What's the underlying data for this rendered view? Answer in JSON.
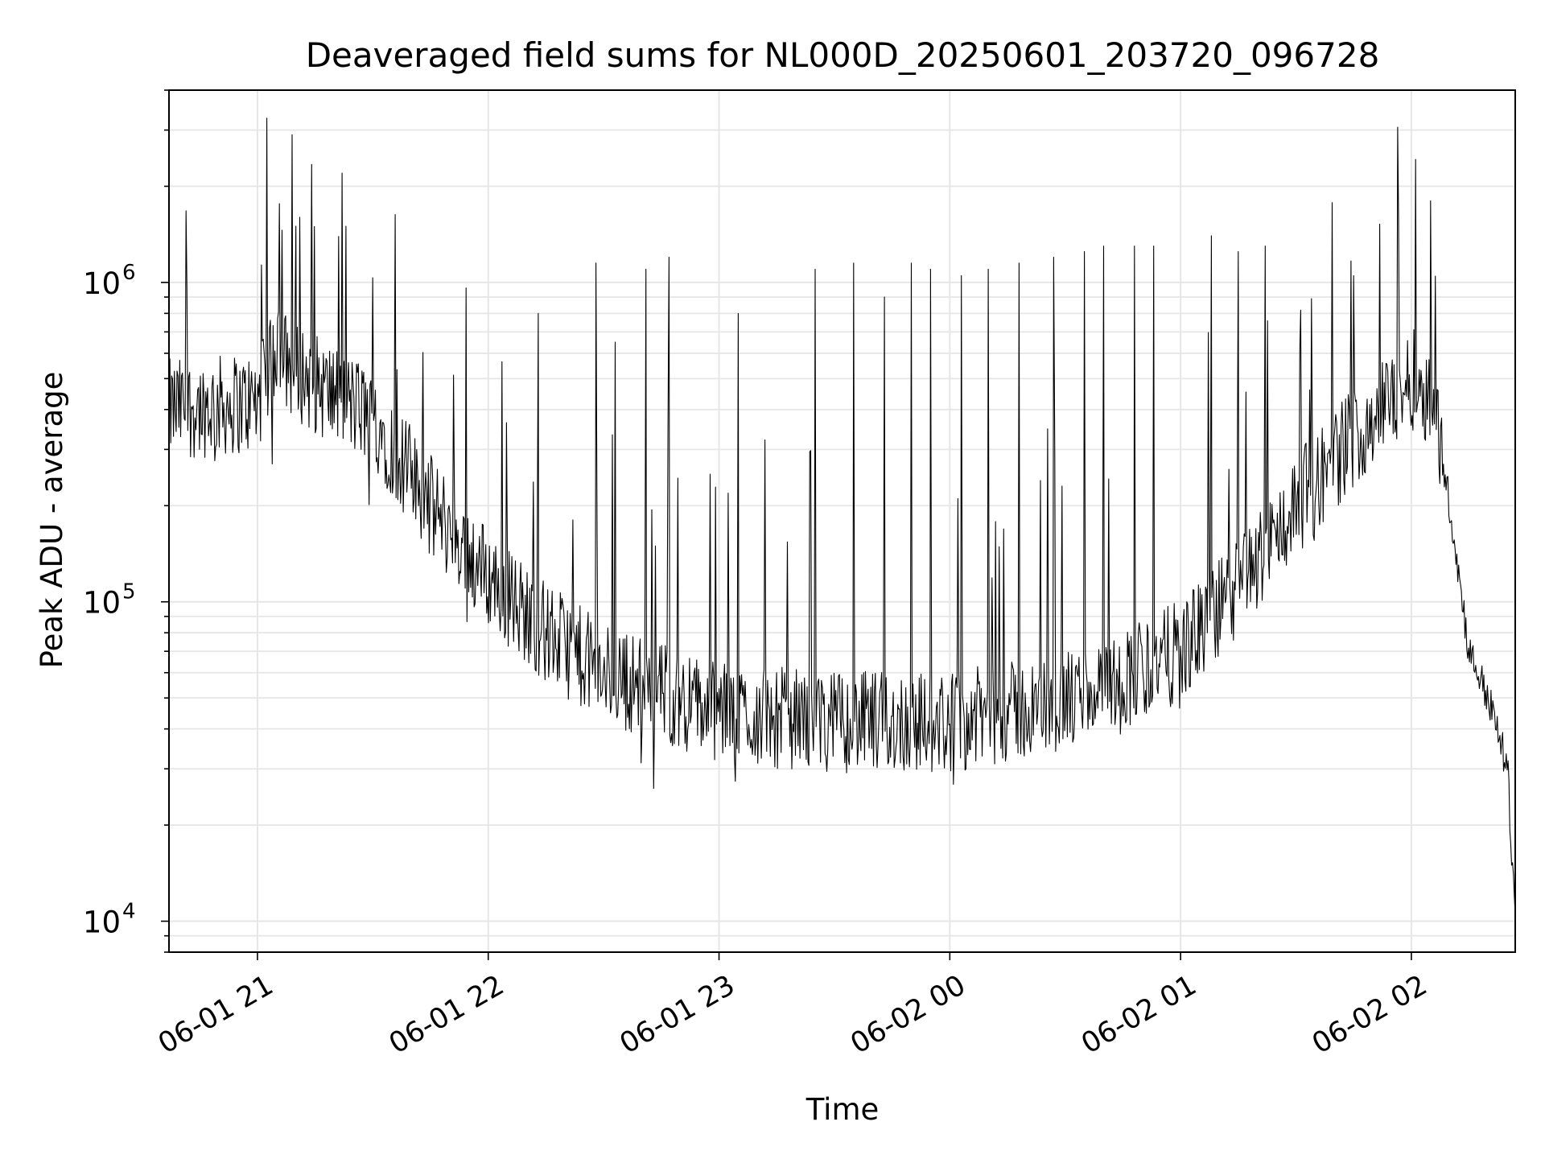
{
  "chart_data": {
    "type": "line",
    "title": "Deaveraged field sums for NL000D_20250601_203720_096728",
    "xlabel": "Time",
    "ylabel": "Peak ADU - average",
    "yscale": "log",
    "ylim": [
      8000,
      4000000
    ],
    "xlim": [
      "2025-06-01 20:37",
      "2025-06-02 02:27"
    ],
    "grid": true,
    "line_color": "#000000",
    "grid_color": "#e6e6e6",
    "x_ticks": [
      {
        "t": "2025-06-01 21:00",
        "label": "06-01 21"
      },
      {
        "t": "2025-06-01 22:00",
        "label": "06-01 22"
      },
      {
        "t": "2025-06-01 23:00",
        "label": "06-01 23"
      },
      {
        "t": "2025-06-02 00:00",
        "label": "06-02 00"
      },
      {
        "t": "2025-06-02 01:00",
        "label": "06-02 01"
      },
      {
        "t": "2025-06-02 02:00",
        "label": "06-02 02"
      }
    ],
    "y_ticks": [
      {
        "value": 10000,
        "base": "10",
        "exp": "4"
      },
      {
        "value": 100000,
        "base": "10",
        "exp": "5"
      },
      {
        "value": 1000000,
        "base": "10",
        "exp": "6"
      }
    ],
    "series": [
      {
        "description": "Noisy ADU trace with frequent narrow spikes",
        "baseline": [
          {
            "t": "2025-06-01 20:37",
            "value": 400000
          },
          {
            "t": "2025-06-01 21:00",
            "value": 420000
          },
          {
            "t": "2025-06-01 21:05",
            "value": 600000
          },
          {
            "t": "2025-06-01 21:15",
            "value": 480000
          },
          {
            "t": "2025-06-01 21:30",
            "value": 380000
          },
          {
            "t": "2025-06-01 21:45",
            "value": 200000
          },
          {
            "t": "2025-06-01 22:00",
            "value": 120000
          },
          {
            "t": "2025-06-01 22:15",
            "value": 80000
          },
          {
            "t": "2025-06-01 22:30",
            "value": 60000
          },
          {
            "t": "2025-06-01 22:45",
            "value": 52000
          },
          {
            "t": "2025-06-01 23:00",
            "value": 45000
          },
          {
            "t": "2025-06-01 23:30",
            "value": 42000
          },
          {
            "t": "2025-06-02 00:00",
            "value": 42000
          },
          {
            "t": "2025-06-02 00:30",
            "value": 48000
          },
          {
            "t": "2025-06-02 00:45",
            "value": 58000
          },
          {
            "t": "2025-06-02 01:00",
            "value": 70000
          },
          {
            "t": "2025-06-02 01:15",
            "value": 110000
          },
          {
            "t": "2025-06-02 01:30",
            "value": 200000
          },
          {
            "t": "2025-06-02 01:45",
            "value": 330000
          },
          {
            "t": "2025-06-02 02:00",
            "value": 500000
          },
          {
            "t": "2025-06-02 02:05",
            "value": 450000
          },
          {
            "t": "2025-06-02 02:10",
            "value": 200000
          },
          {
            "t": "2025-06-02 02:15",
            "value": 70000
          },
          {
            "t": "2025-06-02 02:20",
            "value": 50000
          },
          {
            "t": "2025-06-02 02:25",
            "value": 30000
          },
          {
            "t": "2025-06-02 02:27",
            "value": 10500
          }
        ],
        "spikes": [
          {
            "t": "2025-06-01 21:09",
            "value": 2900000
          },
          {
            "t": "2025-06-01 21:10",
            "value": 1500000
          },
          {
            "t": "2025-06-01 21:11",
            "value": 1600000
          },
          {
            "t": "2025-06-01 21:22",
            "value": 2200000
          },
          {
            "t": "2025-06-01 21:23",
            "value": 1500000
          },
          {
            "t": "2025-06-01 22:13",
            "value": 800000
          },
          {
            "t": "2025-06-01 22:28",
            "value": 1150000
          },
          {
            "t": "2025-06-01 22:33",
            "value": 650000
          },
          {
            "t": "2025-06-01 22:41",
            "value": 1100000
          },
          {
            "t": "2025-06-01 22:47",
            "value": 1200000
          },
          {
            "t": "2025-06-01 23:05",
            "value": 800000
          },
          {
            "t": "2025-06-01 23:25",
            "value": 1100000
          },
          {
            "t": "2025-06-01 23:35",
            "value": 1150000
          },
          {
            "t": "2025-06-01 23:43",
            "value": 900000
          },
          {
            "t": "2025-06-01 23:50",
            "value": 1150000
          },
          {
            "t": "2025-06-01 23:55",
            "value": 1100000
          },
          {
            "t": "2025-06-02 00:03",
            "value": 1050000
          },
          {
            "t": "2025-06-02 00:10",
            "value": 1100000
          },
          {
            "t": "2025-06-02 00:18",
            "value": 1150000
          },
          {
            "t": "2025-06-02 00:27",
            "value": 1200000
          },
          {
            "t": "2025-06-02 00:35",
            "value": 1250000
          },
          {
            "t": "2025-06-02 00:40",
            "value": 1300000
          },
          {
            "t": "2025-06-02 00:48",
            "value": 1300000
          },
          {
            "t": "2025-06-02 00:53",
            "value": 1300000
          },
          {
            "t": "2025-06-02 01:08",
            "value": 1400000
          },
          {
            "t": "2025-06-02 01:15",
            "value": 1250000
          },
          {
            "t": "2025-06-02 01:22",
            "value": 1300000
          },
          {
            "t": "2025-06-02 01:45",
            "value": 1050000
          },
          {
            "t": "2025-06-02 02:05",
            "value": 1800000
          }
        ],
        "minimum": {
          "t": "2025-06-02 02:27",
          "value": 10500
        }
      }
    ]
  }
}
